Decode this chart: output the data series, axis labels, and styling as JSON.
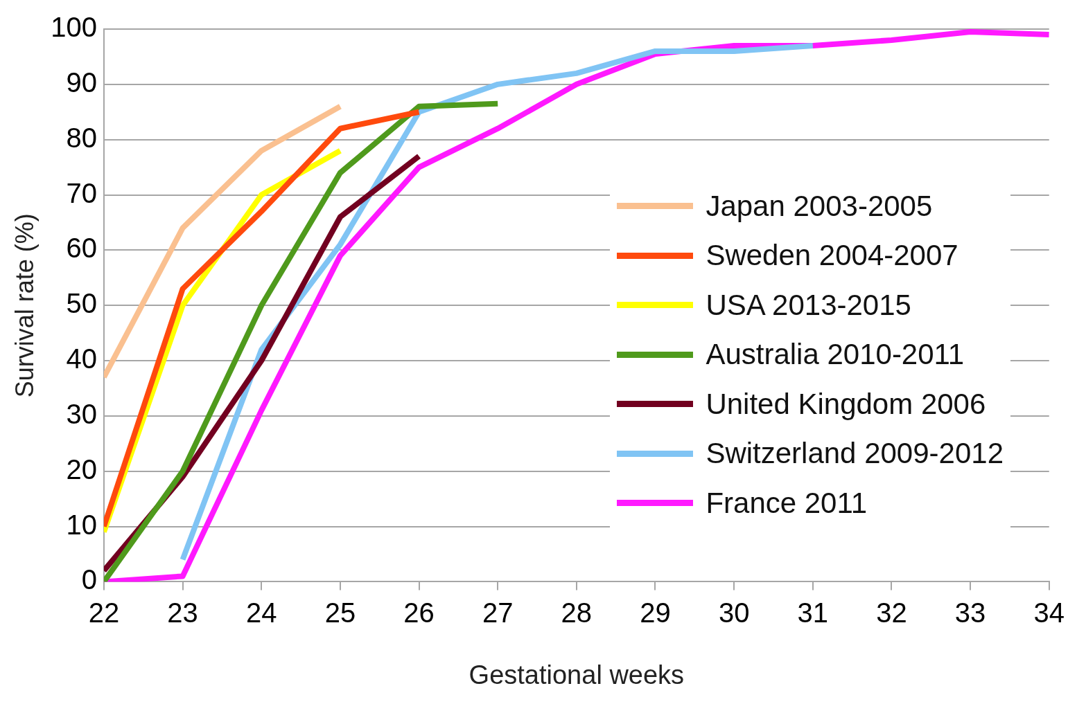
{
  "chart_data": {
    "type": "line",
    "xlabel": "Gestational weeks",
    "ylabel": "Survival rate (%)",
    "xlim": [
      22,
      34
    ],
    "xticks": [
      22,
      23,
      24,
      25,
      26,
      27,
      28,
      29,
      30,
      31,
      32,
      33,
      34
    ],
    "ylim": [
      0,
      100
    ],
    "yticks": [
      0,
      10,
      20,
      30,
      40,
      50,
      60,
      70,
      80,
      90,
      100
    ],
    "grid": "y",
    "legend": "right",
    "marker": "none",
    "line_style": "solid",
    "series": [
      {
        "name": "Japan 2003-2005",
        "color": "#fac090",
        "x": [
          22,
          23,
          24,
          25
        ],
        "values": [
          37,
          64,
          78,
          86
        ]
      },
      {
        "name": "Sweden 2004-2007",
        "color": "#ff4a0d",
        "x": [
          22,
          23,
          24,
          25,
          26
        ],
        "values": [
          10,
          53,
          67,
          82,
          85
        ]
      },
      {
        "name": "USA 2013-2015",
        "color": "#ffff00",
        "x": [
          22,
          23,
          24,
          25
        ],
        "values": [
          9,
          50,
          70,
          78
        ]
      },
      {
        "name": "Australia 2010-2011",
        "color": "#4f9a1c",
        "x": [
          22,
          23,
          24,
          25,
          26,
          27
        ],
        "values": [
          0,
          20,
          50,
          74,
          86,
          86.5
        ]
      },
      {
        "name": "United Kingdom 2006",
        "color": "#720020",
        "x": [
          22,
          23,
          24,
          25,
          26
        ],
        "values": [
          2,
          19,
          40,
          66,
          77
        ]
      },
      {
        "name": "Switzerland 2009-2012",
        "color": "#80c4f4",
        "x": [
          23,
          24,
          25,
          26,
          27,
          28,
          29,
          30,
          31
        ],
        "values": [
          4,
          42,
          61,
          85,
          90,
          92,
          96,
          96,
          97
        ]
      },
      {
        "name": "France 2011",
        "color": "#ff19ff",
        "x": [
          22,
          23,
          24,
          25,
          26,
          27,
          28,
          29,
          30,
          31,
          32,
          33,
          34
        ],
        "values": [
          0,
          1,
          31,
          59,
          75,
          82,
          90,
          95.5,
          97,
          97,
          98,
          99.5,
          99
        ]
      }
    ]
  }
}
